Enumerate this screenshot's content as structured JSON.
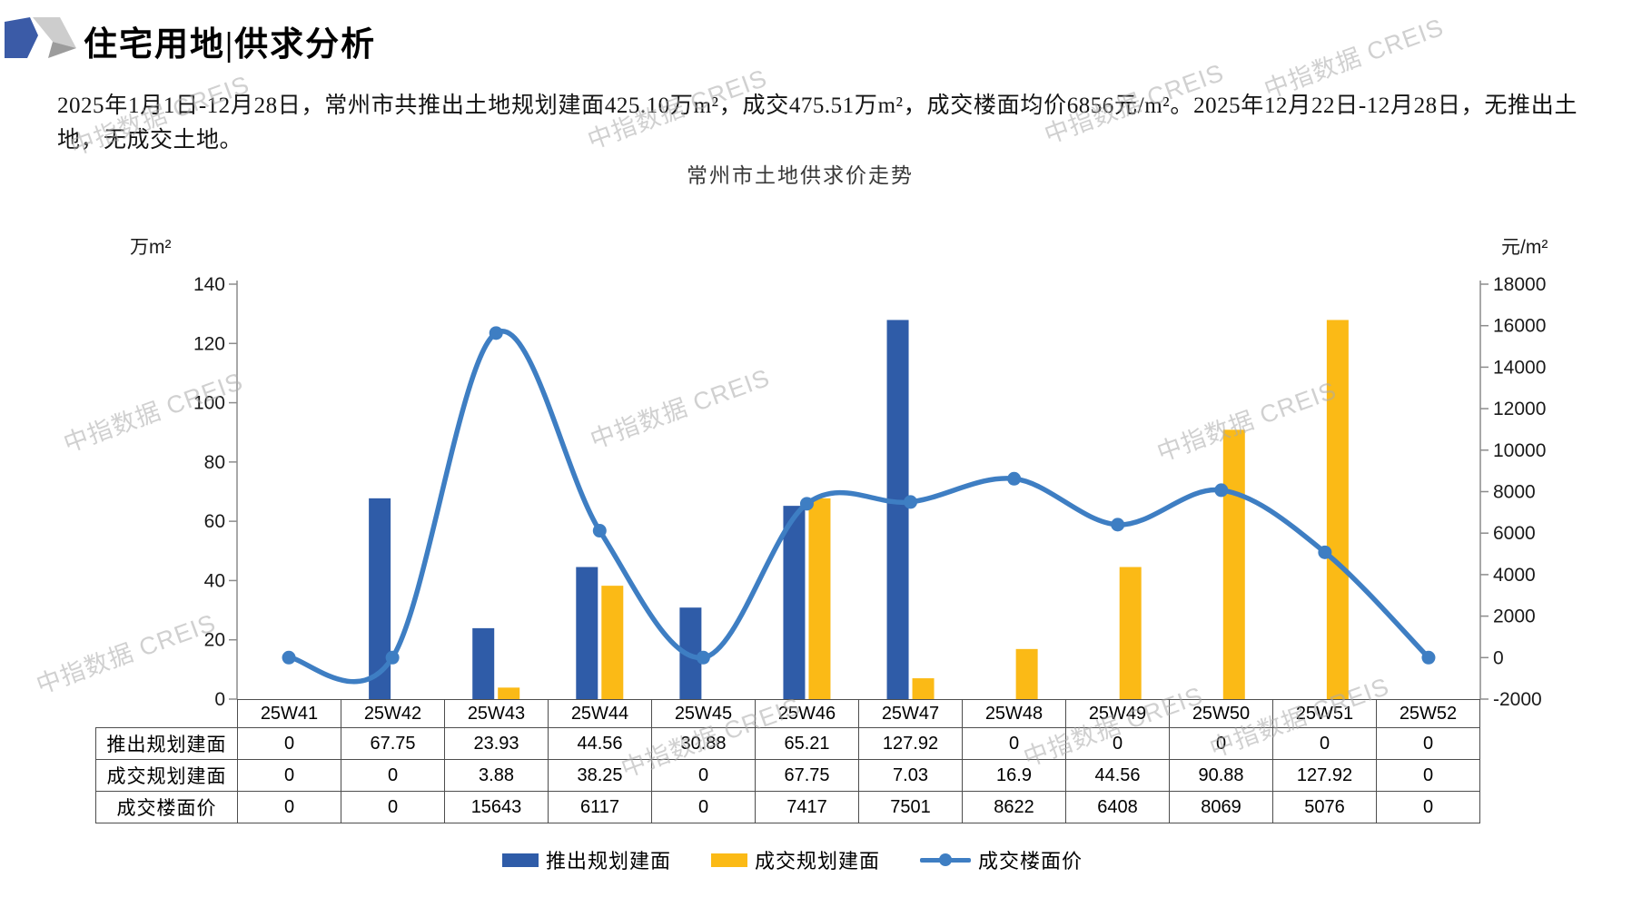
{
  "header": {
    "title": "住宅用地|供求分析"
  },
  "summary": "2025年1月1日-12月28日，常州市共推出土地规划建面425.10万m²，成交475.51万m²，成交楼面均价6856元/m²。2025年12月22日-12月28日，无推出土地，无成交土地。",
  "watermark": {
    "text": "中指数据 CREIS"
  },
  "chart_data": {
    "type": "bar+line",
    "title": "常州市土地供求价走势",
    "categories": [
      "25W41",
      "25W42",
      "25W43",
      "25W44",
      "25W45",
      "25W46",
      "25W47",
      "25W48",
      "25W49",
      "25W50",
      "25W51",
      "25W52"
    ],
    "series": [
      {
        "name": "推出规划建面",
        "type": "bar",
        "axis": "left",
        "color": "#2F5CA8",
        "values": [
          0,
          67.75,
          23.93,
          44.56,
          30.88,
          65.21,
          127.92,
          0,
          0,
          0,
          0,
          0
        ]
      },
      {
        "name": "成交规划建面",
        "type": "bar",
        "axis": "left",
        "color": "#FBBA16",
        "values": [
          0,
          0,
          3.88,
          38.25,
          0,
          67.75,
          7.03,
          16.9,
          44.56,
          90.88,
          127.92,
          0
        ]
      },
      {
        "name": "成交楼面价",
        "type": "line",
        "axis": "right",
        "color": "#3E7EC3",
        "values": [
          0,
          0,
          15643,
          6117,
          0,
          7417,
          7501,
          8622,
          6408,
          8069,
          5076,
          0
        ]
      }
    ],
    "left_axis": {
      "unit": "万m²",
      "min": 0,
      "max": 140,
      "step": 20
    },
    "right_axis": {
      "unit": "元/m²",
      "min": -2000,
      "max": 18000,
      "step": 2000
    },
    "grid": false,
    "legend_position": "bottom",
    "has_data_table": true
  },
  "logo_colors": {
    "blue": "#3B5BA7",
    "light_gray": "#CDCDCD",
    "dark_gray": "#9C9C9C"
  }
}
